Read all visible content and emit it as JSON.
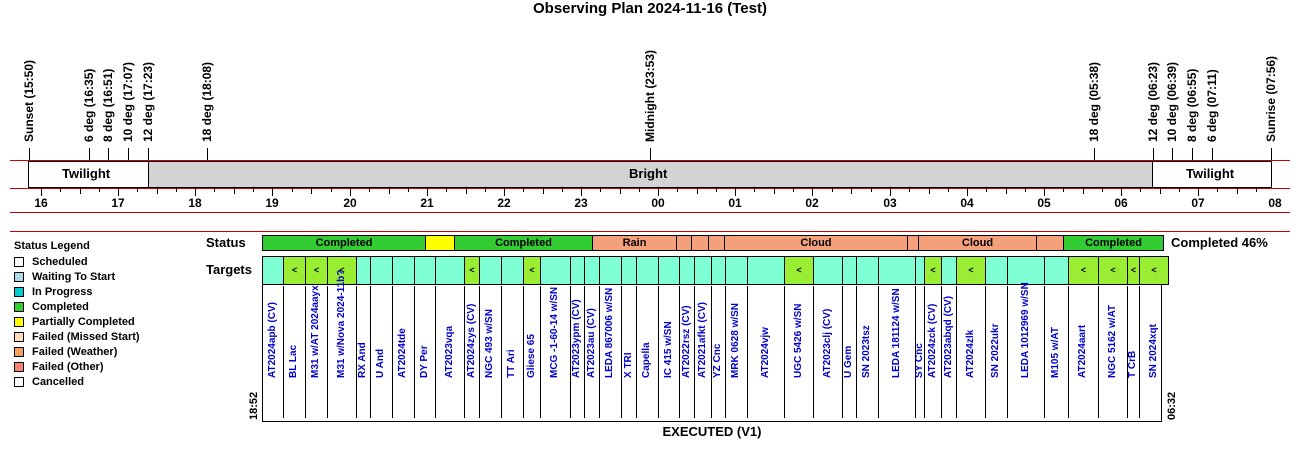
{
  "title": "Observing Plan 2024-11-16 (Test)",
  "events": [
    {
      "label": "Sunset (15:50)"
    },
    {
      "label": "6 deg (16:35)"
    },
    {
      "label": "8 deg (16:51)"
    },
    {
      "label": "10 deg (17:07)"
    },
    {
      "label": "12 deg (17:23)"
    },
    {
      "label": "18 deg (18:08)"
    },
    {
      "label": "Midnight (23:53)"
    },
    {
      "label": "18 deg (05:38)"
    },
    {
      "label": "12 deg (06:23)"
    },
    {
      "label": "10 deg (06:39)"
    },
    {
      "label": "8 deg (06:55)"
    },
    {
      "label": "6 deg (07:11)"
    },
    {
      "label": "Sunrise (07:56)"
    }
  ],
  "bands": {
    "twilight_left": "Twilight",
    "bright": "Bright",
    "twilight_right": "Twilight"
  },
  "hours": [
    "16",
    "17",
    "18",
    "19",
    "20",
    "21",
    "22",
    "23",
    "00",
    "01",
    "02",
    "03",
    "04",
    "05",
    "06",
    "07",
    "08"
  ],
  "legend": {
    "title": "Status Legend",
    "items": [
      {
        "label": "Scheduled",
        "color": "#ffffff"
      },
      {
        "label": "Waiting To Start",
        "color": "#add8e6"
      },
      {
        "label": "In Progress",
        "color": "#00ced1"
      },
      {
        "label": "Completed",
        "color": "#32cd32"
      },
      {
        "label": "Partially Completed",
        "color": "#ffff00"
      },
      {
        "label": "Failed (Missed Start)",
        "color": "#ffdab9"
      },
      {
        "label": "Failed (Weather)",
        "color": "#f4a460"
      },
      {
        "label": "Failed (Other)",
        "color": "#fa8072"
      },
      {
        "label": "Cancelled",
        "color": "#ffffff"
      }
    ]
  },
  "row_labels": {
    "status": "Status",
    "targets": "Targets"
  },
  "status_summary": "Completed 46%",
  "status_segments": [
    {
      "label": "Completed",
      "color": "#33cc33"
    },
    {
      "label": "",
      "color": "#ffff00"
    },
    {
      "label": "Completed",
      "color": "#33cc33"
    },
    {
      "label": "Rain",
      "color": "#f4a07a"
    },
    {
      "label": "",
      "color": "#f4a07a"
    },
    {
      "label": "",
      "color": "#f4a07a"
    },
    {
      "label": "",
      "color": "#f4a07a"
    },
    {
      "label": "Cloud",
      "color": "#f4a07a"
    },
    {
      "label": "",
      "color": "#f4a07a"
    },
    {
      "label": "Cloud",
      "color": "#f4a07a"
    },
    {
      "label": "",
      "color": "#f4a07a"
    },
    {
      "label": "Completed",
      "color": "#33cc33"
    }
  ],
  "targets": [
    {
      "name": "AT2024apb (CV)",
      "mark": "",
      "color": "#7fffd4"
    },
    {
      "name": "BL Lac",
      "mark": "<",
      "color": "#99ee33"
    },
    {
      "name": "M31 w/AT 2024aayx",
      "mark": "<",
      "color": "#99ee33"
    },
    {
      "name": "M31 w/Nova 2024-11b?",
      "mark": "<",
      "color": "#99ee33"
    },
    {
      "name": "RX And",
      "mark": "",
      "color": "#7fffd4"
    },
    {
      "name": "U And",
      "mark": "",
      "color": "#7fffd4"
    },
    {
      "name": "AT2024tde",
      "mark": "",
      "color": "#7fffd4"
    },
    {
      "name": "DY Per",
      "mark": "",
      "color": "#7fffd4"
    },
    {
      "name": "AT2023vqa",
      "mark": "",
      "color": "#7fffd4"
    },
    {
      "name": "AT2024zys (CV)",
      "mark": "<",
      "color": "#99ee33"
    },
    {
      "name": "NGC 493 w/SN",
      "mark": "",
      "color": "#7fffd4"
    },
    {
      "name": "TT Ari",
      "mark": "",
      "color": "#7fffd4"
    },
    {
      "name": "Gliese 65",
      "mark": "<",
      "color": "#99ee33"
    },
    {
      "name": "MCG -1-60-14 w/SN",
      "mark": "",
      "color": "#7fffd4"
    },
    {
      "name": "AT2023ypm (CV)",
      "mark": "",
      "color": "#7fffd4"
    },
    {
      "name": "AT2023au (CV)",
      "mark": "",
      "color": "#7fffd4"
    },
    {
      "name": "LEDA 867006 w/SN",
      "mark": "",
      "color": "#7fffd4"
    },
    {
      "name": "X TRI",
      "mark": "",
      "color": "#7fffd4"
    },
    {
      "name": "Capella",
      "mark": "",
      "color": "#7fffd4"
    },
    {
      "name": "IC 415 w/SN",
      "mark": "",
      "color": "#7fffd4"
    },
    {
      "name": "AT2022rsz (CV)",
      "mark": "",
      "color": "#7fffd4"
    },
    {
      "name": "AT2021afkt (CV)",
      "mark": "",
      "color": "#7fffd4"
    },
    {
      "name": "YZ Cnc",
      "mark": "",
      "color": "#7fffd4"
    },
    {
      "name": "MRK 0628 w/SN",
      "mark": "",
      "color": "#7fffd4"
    },
    {
      "name": "AT2024vjw",
      "mark": "",
      "color": "#7fffd4"
    },
    {
      "name": "UGC 5426 w/SN",
      "mark": "<",
      "color": "#99ee33"
    },
    {
      "name": "AT2023clj (CV)",
      "mark": "",
      "color": "#7fffd4"
    },
    {
      "name": "U Gem",
      "mark": "",
      "color": "#7fffd4"
    },
    {
      "name": "SN 2023tsz",
      "mark": "",
      "color": "#7fffd4"
    },
    {
      "name": "LEDA 181124 w/SN",
      "mark": "",
      "color": "#7fffd4"
    },
    {
      "name": "SY Cnc",
      "mark": "",
      "color": "#7fffd4"
    },
    {
      "name": "AT2024zck (CV)",
      "mark": "<",
      "color": "#99ee33"
    },
    {
      "name": "AT2023abqd (CV)",
      "mark": "",
      "color": "#7fffd4"
    },
    {
      "name": "AT2024zlk",
      "mark": "<",
      "color": "#99ee33"
    },
    {
      "name": "SN 2022ukr",
      "mark": "",
      "color": "#7fffd4"
    },
    {
      "name": "LEDA 1012969 w/SN",
      "mark": "",
      "color": "#7fffd4"
    },
    {
      "name": "M105 w/AT",
      "mark": "",
      "color": "#7fffd4"
    },
    {
      "name": "AT2024aart",
      "mark": "<",
      "color": "#99ee33"
    },
    {
      "name": "NGC 5162 w/AT",
      "mark": "<",
      "color": "#99ee33"
    },
    {
      "name": "T CrB",
      "mark": "<",
      "color": "#99ee33"
    },
    {
      "name": "SN 2024xqt",
      "mark": "<",
      "color": "#99ee33"
    }
  ],
  "start_time": "18:52",
  "end_time": "06:32",
  "footer": "EXECUTED (V1)"
}
